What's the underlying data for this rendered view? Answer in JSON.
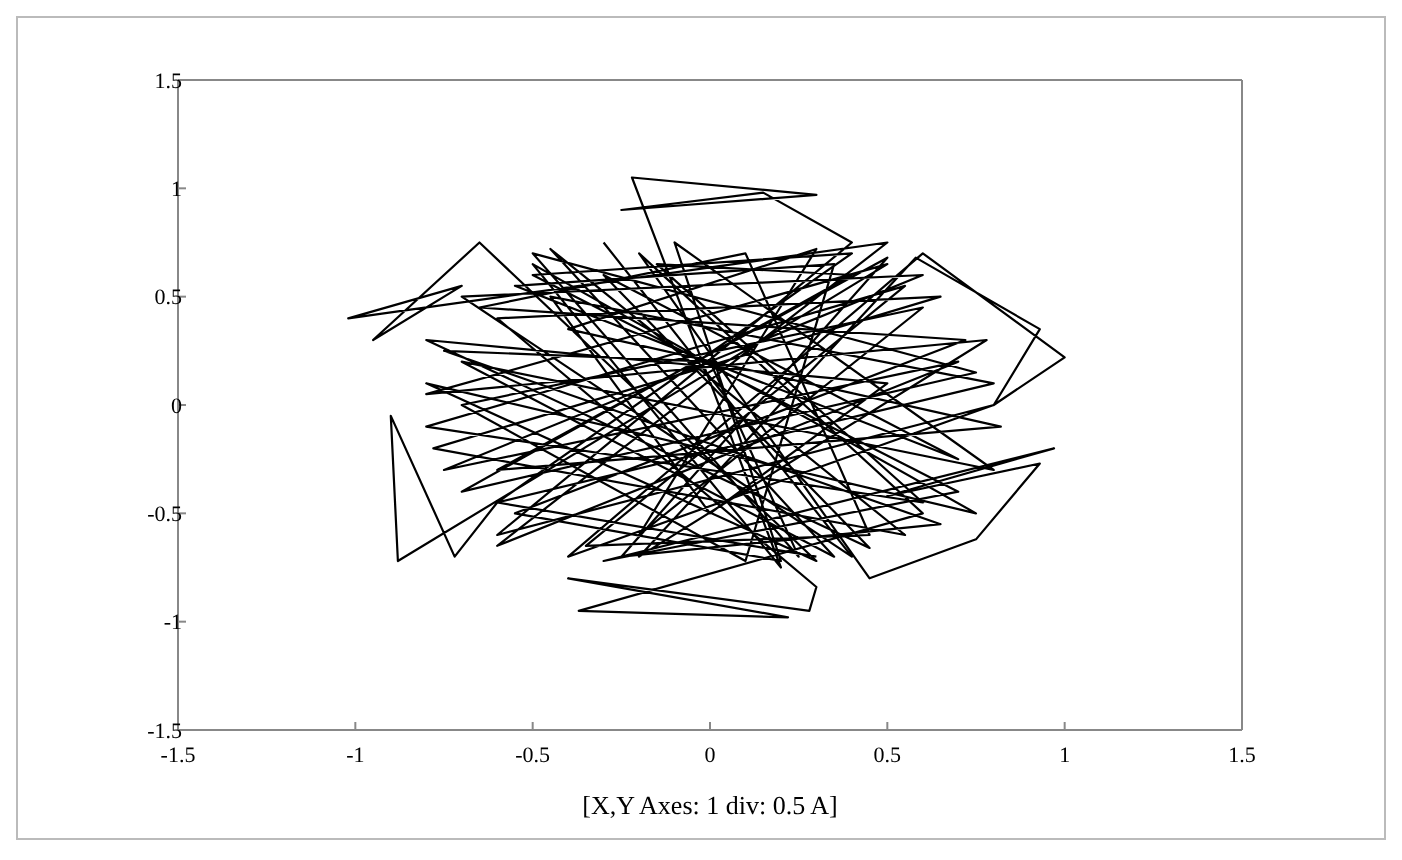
{
  "chart_data": {
    "type": "line",
    "xlabel": "[X,Y Axes: 1 div: 0.5 A]",
    "xlim": [
      -1.5,
      1.5
    ],
    "ylim": [
      -1.5,
      1.5
    ],
    "xticks": [
      -1.5,
      -1,
      -0.5,
      0,
      0.5,
      1,
      1.5
    ],
    "yticks": [
      -1.5,
      -1,
      -0.5,
      0,
      0.5,
      1,
      1.5
    ],
    "grid": false,
    "marker": "none",
    "line_style": "solid",
    "series": [
      {
        "color": "#000000",
        "x": [
          -0.3,
          0.4,
          -0.7,
          0.6,
          -0.75,
          0.7,
          -0.6,
          0.5,
          -1.02,
          -0.7,
          -0.95,
          -0.65,
          0.3,
          -0.8,
          0.75,
          -0.5,
          0.2,
          -0.22,
          0.3,
          -0.25,
          0.15,
          0.4,
          -0.6,
          0.8,
          -0.4,
          0.6,
          1.0,
          0.8,
          0.93,
          0.58,
          -0.2,
          0.78,
          -0.8,
          0.5,
          -0.88,
          -0.9,
          -0.72,
          -0.6,
          0.4,
          -0.5,
          0.7,
          -0.3,
          0.97,
          0.5,
          0.93,
          0.75,
          0.45,
          -0.2,
          0.6,
          -0.37,
          0.22,
          -0.4,
          0.28,
          0.3,
          -0.6,
          0.65,
          -0.78,
          0.55,
          -0.45,
          0.35,
          -0.7,
          0.8,
          -0.1,
          0.2,
          -0.55,
          0.72,
          -0.65,
          0.1,
          0.45,
          -0.35,
          0.55,
          -0.8,
          0.6,
          -0.15,
          0.4,
          -0.7,
          0.75,
          -0.5,
          0.25,
          0.0,
          -0.75,
          0.65,
          -0.25,
          0.5,
          -0.6,
          0.82,
          -0.4,
          0.3,
          -0.2,
          0.6,
          -0.7,
          0.1,
          0.35,
          -0.55,
          0.7,
          -0.3,
          0.45,
          -0.8,
          0.5,
          0.0,
          -0.45,
          0.8,
          -0.6,
          0.3
        ],
        "values": [
          0.75,
          -0.7,
          0.5,
          0.6,
          -0.3,
          0.2,
          -0.65,
          0.75,
          0.4,
          0.55,
          0.3,
          0.75,
          -0.72,
          0.1,
          -0.5,
          0.65,
          -0.75,
          1.05,
          0.97,
          0.9,
          0.98,
          0.75,
          -0.6,
          0.0,
          -0.7,
          0.7,
          0.22,
          0.0,
          0.35,
          0.68,
          -0.7,
          0.3,
          0.05,
          0.65,
          -0.72,
          -0.05,
          -0.7,
          -0.45,
          0.7,
          0.6,
          -0.4,
          -0.72,
          -0.2,
          -0.42,
          -0.27,
          -0.62,
          -0.8,
          0.7,
          -0.5,
          -0.95,
          -0.98,
          -0.8,
          -0.95,
          -0.84,
          0.4,
          0.5,
          -0.2,
          -0.6,
          0.72,
          -0.7,
          0.2,
          -0.3,
          0.75,
          -0.72,
          -0.5,
          0.3,
          0.45,
          0.7,
          -0.6,
          -0.65,
          0.55,
          -0.1,
          -0.45,
          0.65,
          0.6,
          -0.4,
          0.15,
          0.7,
          -0.7,
          0.2,
          0.25,
          -0.55,
          -0.7,
          0.68,
          -0.3,
          -0.1,
          0.35,
          0.72,
          -0.6,
          0.45,
          0.0,
          -0.72,
          0.65,
          0.55,
          -0.25,
          0.6,
          -0.66,
          0.3,
          0.1,
          -0.5,
          0.5,
          0.1,
          -0.45,
          -0.7
        ]
      }
    ]
  }
}
